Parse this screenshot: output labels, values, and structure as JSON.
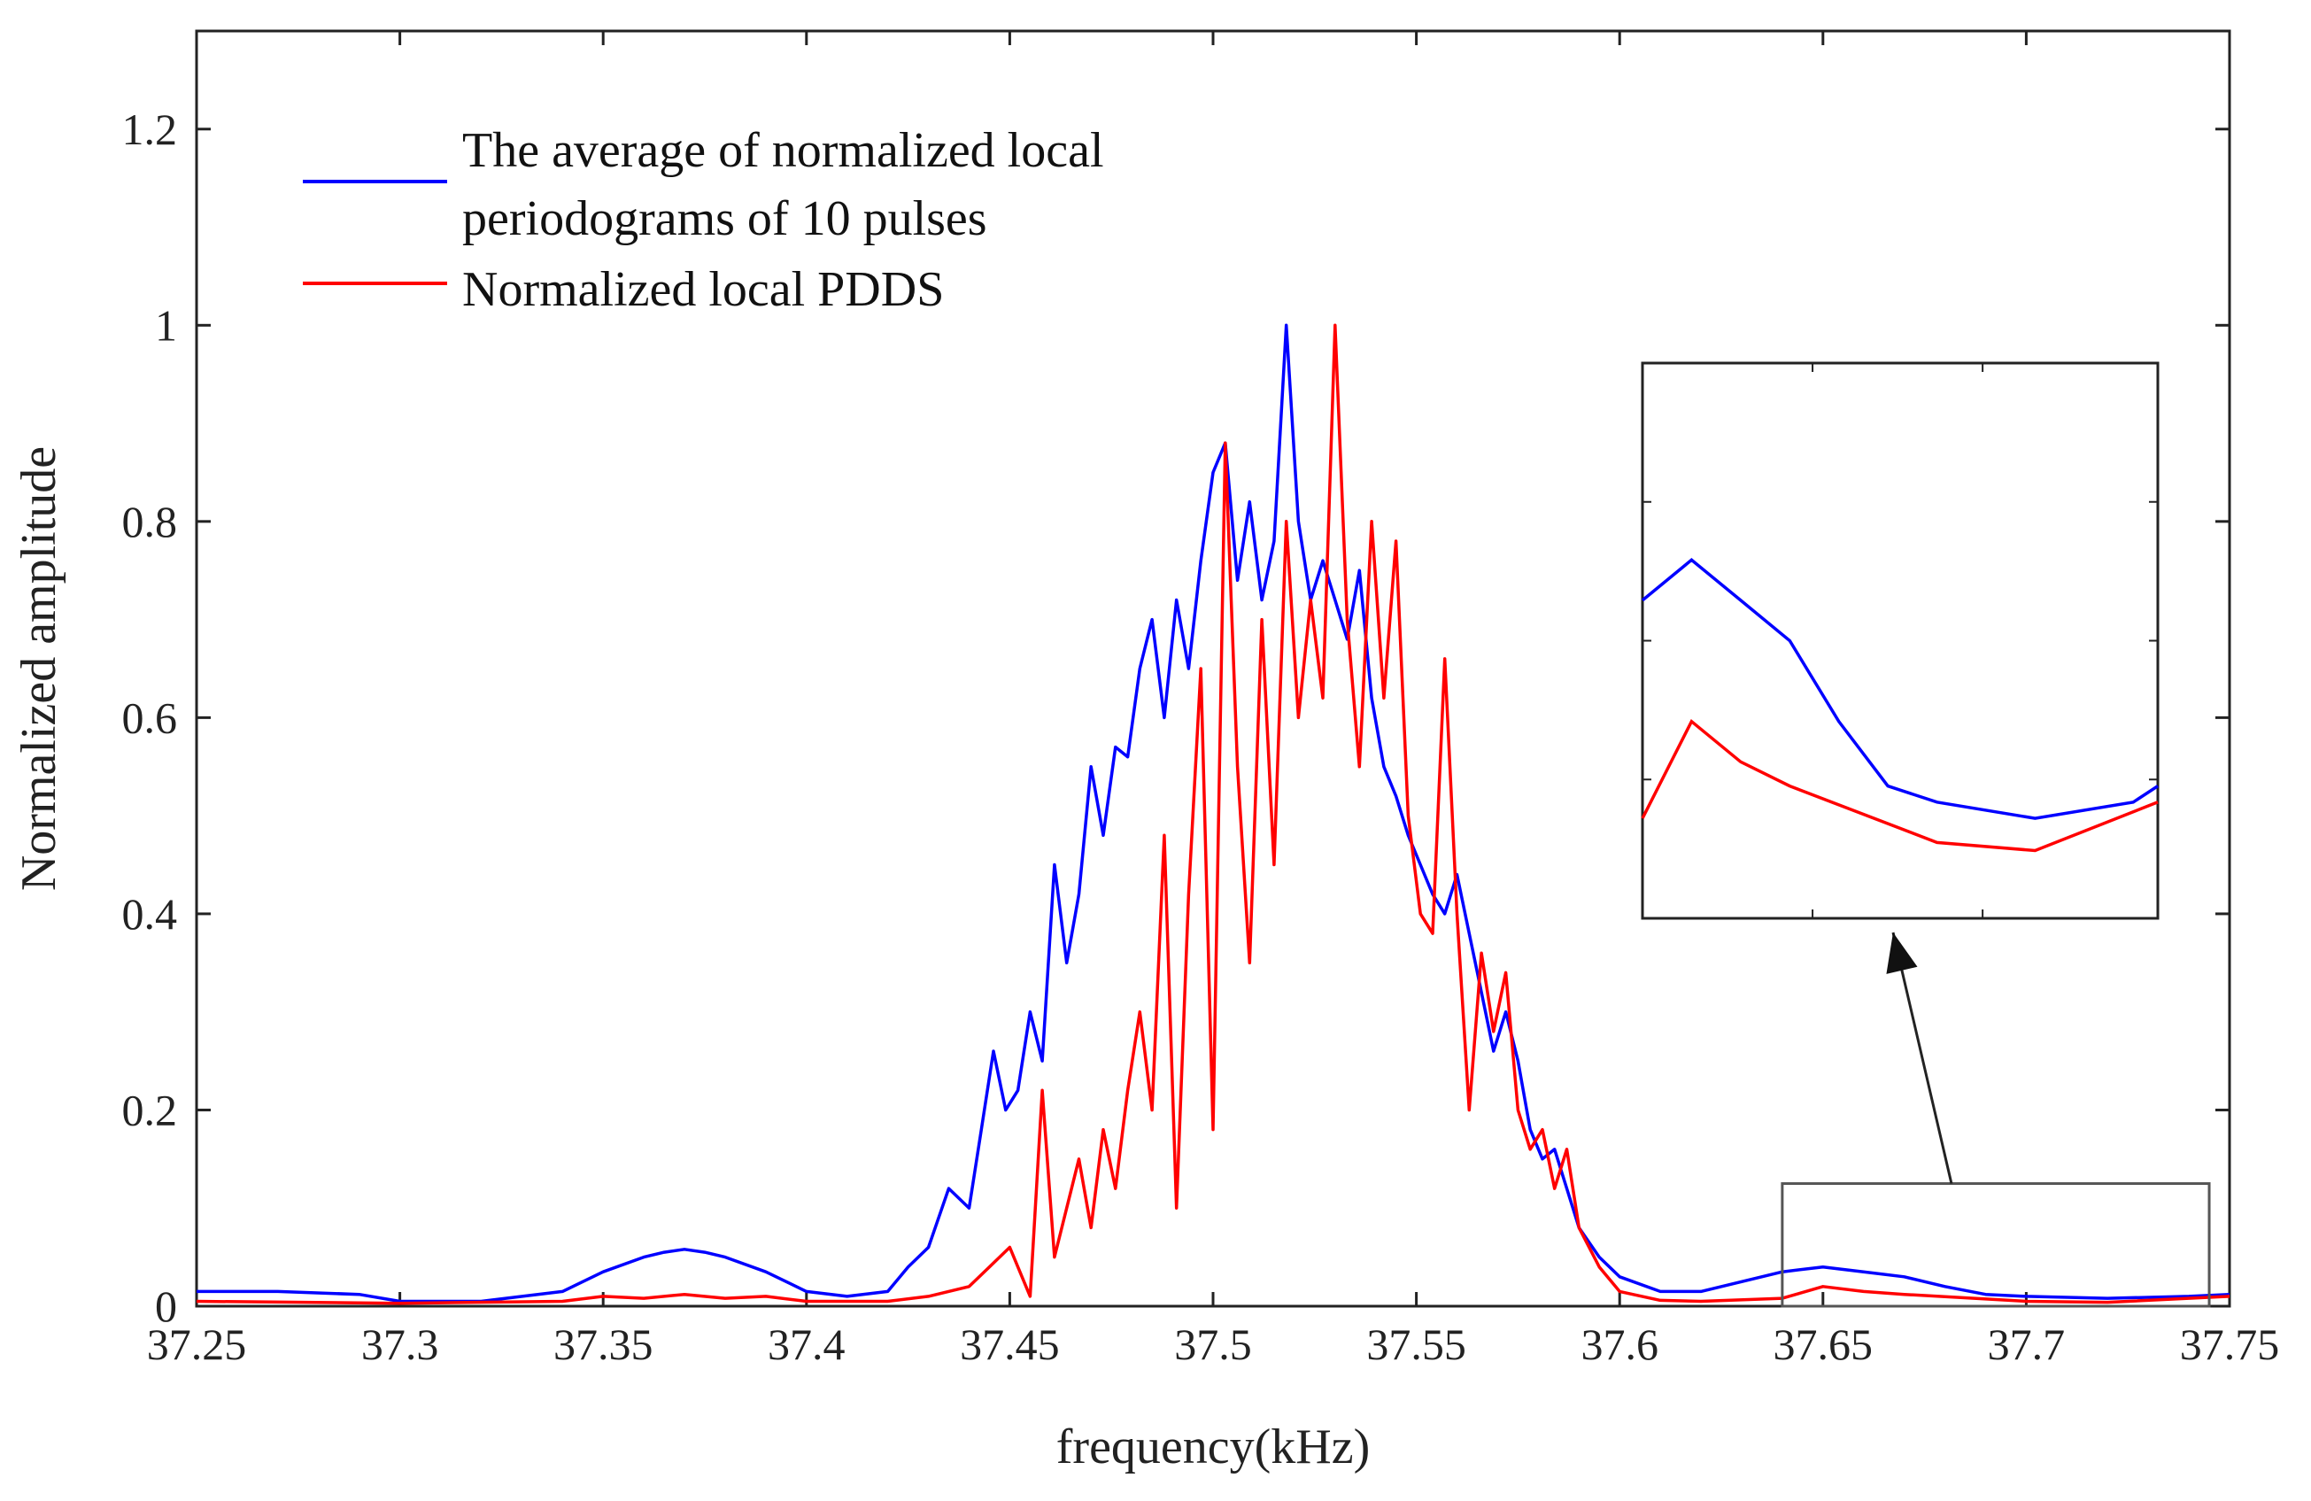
{
  "chart_data": {
    "type": "line",
    "title": "",
    "xlabel": "frequency(kHz)",
    "ylabel": "Normalized amplitude",
    "xlim": [
      37.25,
      37.75
    ],
    "ylim": [
      0,
      1.3
    ],
    "grid": false,
    "legend_position": "top-left",
    "x_ticks": [
      37.25,
      37.3,
      37.35,
      37.4,
      37.45,
      37.5,
      37.55,
      37.6,
      37.65,
      37.7,
      37.75
    ],
    "x_tick_labels": [
      "37.25",
      "37.3",
      "37.35",
      "37.4",
      "37.45",
      "37.5",
      "37.55",
      "37.6",
      "37.65",
      "37.7",
      "37.75"
    ],
    "y_ticks": [
      0,
      0.2,
      0.4,
      0.6,
      0.8,
      1.0,
      1.2
    ],
    "y_tick_labels": [
      "0",
      "0.2",
      "0.4",
      "0.6",
      "0.8",
      "1",
      "1.2"
    ],
    "series": [
      {
        "name": "The average of normalized local periodograms of 10 pulses",
        "color": "#0000ff",
        "x": [
          37.25,
          37.27,
          37.29,
          37.3,
          37.32,
          37.34,
          37.35,
          37.36,
          37.365,
          37.37,
          37.375,
          37.38,
          37.39,
          37.4,
          37.41,
          37.42,
          37.425,
          37.43,
          37.435,
          37.44,
          37.443,
          37.446,
          37.449,
          37.452,
          37.455,
          37.458,
          37.461,
          37.464,
          37.467,
          37.47,
          37.473,
          37.476,
          37.479,
          37.482,
          37.485,
          37.488,
          37.491,
          37.494,
          37.497,
          37.5,
          37.503,
          37.506,
          37.509,
          37.512,
          37.515,
          37.518,
          37.521,
          37.524,
          37.527,
          37.53,
          37.533,
          37.536,
          37.539,
          37.542,
          37.545,
          37.548,
          37.551,
          37.554,
          37.557,
          37.56,
          37.563,
          37.566,
          37.569,
          37.572,
          37.575,
          37.578,
          37.581,
          37.584,
          37.587,
          37.59,
          37.595,
          37.6,
          37.61,
          37.62,
          37.63,
          37.64,
          37.65,
          37.66,
          37.67,
          37.68,
          37.69,
          37.7,
          37.72,
          37.74,
          37.75
        ],
        "y": [
          0.015,
          0.015,
          0.012,
          0.005,
          0.005,
          0.015,
          0.035,
          0.05,
          0.055,
          0.058,
          0.055,
          0.05,
          0.035,
          0.015,
          0.01,
          0.015,
          0.04,
          0.06,
          0.12,
          0.1,
          0.18,
          0.26,
          0.2,
          0.22,
          0.3,
          0.25,
          0.45,
          0.35,
          0.42,
          0.55,
          0.48,
          0.57,
          0.56,
          0.65,
          0.7,
          0.6,
          0.72,
          0.65,
          0.76,
          0.85,
          0.88,
          0.74,
          0.82,
          0.72,
          0.78,
          1.0,
          0.8,
          0.72,
          0.76,
          0.72,
          0.68,
          0.75,
          0.62,
          0.55,
          0.52,
          0.48,
          0.45,
          0.42,
          0.4,
          0.44,
          0.38,
          0.32,
          0.26,
          0.3,
          0.25,
          0.18,
          0.15,
          0.16,
          0.12,
          0.08,
          0.05,
          0.03,
          0.015,
          0.015,
          0.025,
          0.035,
          0.04,
          0.035,
          0.03,
          0.02,
          0.012,
          0.01,
          0.008,
          0.01,
          0.012
        ]
      },
      {
        "name": "Normalized local PDDS",
        "color": "#ff0000",
        "x": [
          37.25,
          37.3,
          37.34,
          37.35,
          37.36,
          37.37,
          37.38,
          37.39,
          37.4,
          37.42,
          37.43,
          37.44,
          37.445,
          37.45,
          37.455,
          37.458,
          37.461,
          37.464,
          37.467,
          37.47,
          37.473,
          37.476,
          37.479,
          37.482,
          37.485,
          37.488,
          37.491,
          37.494,
          37.497,
          37.5,
          37.503,
          37.506,
          37.509,
          37.512,
          37.515,
          37.518,
          37.521,
          37.524,
          37.527,
          37.53,
          37.533,
          37.536,
          37.539,
          37.542,
          37.545,
          37.548,
          37.551,
          37.554,
          37.557,
          37.56,
          37.563,
          37.566,
          37.569,
          37.572,
          37.575,
          37.578,
          37.581,
          37.584,
          37.587,
          37.59,
          37.595,
          37.6,
          37.61,
          37.62,
          37.64,
          37.65,
          37.66,
          37.67,
          37.7,
          37.72,
          37.75
        ],
        "y": [
          0.005,
          0.003,
          0.005,
          0.01,
          0.008,
          0.012,
          0.008,
          0.01,
          0.005,
          0.005,
          0.01,
          0.02,
          0.04,
          0.06,
          0.01,
          0.22,
          0.05,
          0.1,
          0.15,
          0.08,
          0.18,
          0.12,
          0.22,
          0.3,
          0.2,
          0.48,
          0.1,
          0.42,
          0.65,
          0.18,
          0.88,
          0.55,
          0.35,
          0.7,
          0.45,
          0.8,
          0.6,
          0.72,
          0.62,
          1.0,
          0.7,
          0.55,
          0.8,
          0.62,
          0.78,
          0.5,
          0.4,
          0.38,
          0.66,
          0.4,
          0.2,
          0.36,
          0.28,
          0.34,
          0.2,
          0.16,
          0.18,
          0.12,
          0.16,
          0.08,
          0.04,
          0.015,
          0.006,
          0.005,
          0.008,
          0.02,
          0.015,
          0.012,
          0.005,
          0.004,
          0.01
        ]
      }
    ],
    "inset": {
      "source_x_range": [
        37.64,
        37.745
      ],
      "source_y_range": [
        0,
        0.125
      ],
      "arrow": true
    }
  }
}
